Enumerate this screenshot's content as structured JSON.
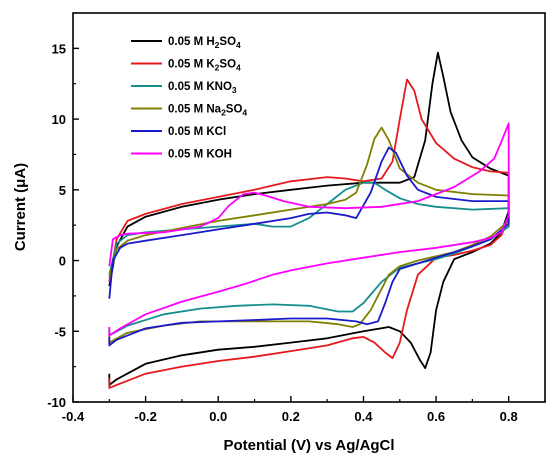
{
  "chart_data": {
    "type": "line",
    "title": "",
    "xlabel": "Potential (V) vs Ag/AgCl",
    "ylabel": "Current (μA)",
    "xlim": [
      -0.4,
      0.9
    ],
    "ylim": [
      -10,
      17.5
    ],
    "xticks": [
      -0.4,
      -0.2,
      0.0,
      0.2,
      0.4,
      0.6,
      0.8
    ],
    "xtick_labels": [
      "-0.4",
      "-0.2",
      "0.0",
      "0.2",
      "0.4",
      "0.6",
      "0.8"
    ],
    "yticks": [
      -10,
      -5,
      0,
      5,
      10,
      15
    ],
    "ytick_labels": [
      "-10",
      "-5",
      "0",
      "5",
      "10",
      "15"
    ],
    "legend_position": "top-left",
    "grid": false,
    "series": [
      {
        "name": "0.05 M H2SO4",
        "legend": {
          "prefix": "0.05 M H",
          "parts": [
            [
              "2",
              "sub"
            ],
            [
              "SO",
              "n"
            ],
            [
              "4",
              "sub"
            ]
          ]
        },
        "color": "#000000",
        "points": [
          [
            -0.3,
            -1.8
          ],
          [
            -0.28,
            1.0
          ],
          [
            -0.25,
            2.4
          ],
          [
            -0.2,
            3.1
          ],
          [
            -0.1,
            3.8
          ],
          [
            0.0,
            4.3
          ],
          [
            0.1,
            4.7
          ],
          [
            0.2,
            5.0
          ],
          [
            0.3,
            5.3
          ],
          [
            0.4,
            5.5
          ],
          [
            0.45,
            5.5
          ],
          [
            0.5,
            5.5
          ],
          [
            0.54,
            5.9
          ],
          [
            0.57,
            8.5
          ],
          [
            0.59,
            12.5
          ],
          [
            0.605,
            14.7
          ],
          [
            0.62,
            13.0
          ],
          [
            0.64,
            10.5
          ],
          [
            0.67,
            8.5
          ],
          [
            0.7,
            7.3
          ],
          [
            0.75,
            6.5
          ],
          [
            0.8,
            6.0
          ],
          [
            0.8,
            3.5
          ],
          [
            0.78,
            2.0
          ],
          [
            0.75,
            1.2
          ],
          [
            0.7,
            0.6
          ],
          [
            0.65,
            0.1
          ],
          [
            0.62,
            -1.5
          ],
          [
            0.6,
            -3.5
          ],
          [
            0.585,
            -6.5
          ],
          [
            0.57,
            -7.6
          ],
          [
            0.555,
            -7.0
          ],
          [
            0.53,
            -5.8
          ],
          [
            0.5,
            -5.0
          ],
          [
            0.47,
            -4.7
          ],
          [
            0.4,
            -5.0
          ],
          [
            0.3,
            -5.5
          ],
          [
            0.2,
            -5.8
          ],
          [
            0.1,
            -6.1
          ],
          [
            0.0,
            -6.3
          ],
          [
            -0.1,
            -6.7
          ],
          [
            -0.2,
            -7.3
          ],
          [
            -0.28,
            -8.4
          ],
          [
            -0.3,
            -8.8
          ],
          [
            -0.3,
            -8.0
          ]
        ]
      },
      {
        "name": "0.05 M K2SO4",
        "legend": {
          "prefix": "0.05 M K",
          "parts": [
            [
              "2",
              "sub"
            ],
            [
              "SO",
              "n"
            ],
            [
              "4",
              "sub"
            ]
          ]
        },
        "color": "#e41a1c",
        "points": [
          [
            -0.3,
            -1.5
          ],
          [
            -0.28,
            1.5
          ],
          [
            -0.25,
            2.8
          ],
          [
            -0.2,
            3.3
          ],
          [
            -0.1,
            4.0
          ],
          [
            0.0,
            4.5
          ],
          [
            0.1,
            5.0
          ],
          [
            0.2,
            5.6
          ],
          [
            0.3,
            5.9
          ],
          [
            0.35,
            5.8
          ],
          [
            0.4,
            5.6
          ],
          [
            0.45,
            5.8
          ],
          [
            0.48,
            7.0
          ],
          [
            0.5,
            10.0
          ],
          [
            0.52,
            12.8
          ],
          [
            0.54,
            12.0
          ],
          [
            0.56,
            10.0
          ],
          [
            0.6,
            8.3
          ],
          [
            0.65,
            7.2
          ],
          [
            0.7,
            6.6
          ],
          [
            0.75,
            6.3
          ],
          [
            0.8,
            6.2
          ],
          [
            0.8,
            3.0
          ],
          [
            0.78,
            1.8
          ],
          [
            0.75,
            1.1
          ],
          [
            0.7,
            0.7
          ],
          [
            0.65,
            0.4
          ],
          [
            0.6,
            0.2
          ],
          [
            0.55,
            -1.0
          ],
          [
            0.52,
            -3.5
          ],
          [
            0.5,
            -5.8
          ],
          [
            0.48,
            -6.9
          ],
          [
            0.46,
            -6.5
          ],
          [
            0.43,
            -5.8
          ],
          [
            0.4,
            -5.4
          ],
          [
            0.37,
            -5.5
          ],
          [
            0.3,
            -6.0
          ],
          [
            0.2,
            -6.4
          ],
          [
            0.1,
            -6.8
          ],
          [
            0.0,
            -7.1
          ],
          [
            -0.1,
            -7.5
          ],
          [
            -0.2,
            -8.0
          ],
          [
            -0.28,
            -8.8
          ],
          [
            -0.3,
            -9.0
          ],
          [
            -0.3,
            -8.3
          ]
        ]
      },
      {
        "name": "0.05 M KNO3",
        "legend": {
          "prefix": "0.05 M KNO",
          "parts": [
            [
              "3",
              "sub"
            ]
          ]
        },
        "color": "#168e8e",
        "points": [
          [
            -0.3,
            -1.0
          ],
          [
            -0.28,
            1.2
          ],
          [
            -0.25,
            1.8
          ],
          [
            -0.2,
            2.0
          ],
          [
            -0.1,
            2.2
          ],
          [
            0.0,
            2.4
          ],
          [
            0.1,
            2.6
          ],
          [
            0.15,
            2.4
          ],
          [
            0.2,
            2.4
          ],
          [
            0.25,
            3.0
          ],
          [
            0.3,
            4.0
          ],
          [
            0.35,
            5.0
          ],
          [
            0.4,
            5.5
          ],
          [
            0.43,
            5.5
          ],
          [
            0.46,
            5.0
          ],
          [
            0.5,
            4.4
          ],
          [
            0.55,
            4.0
          ],
          [
            0.6,
            3.8
          ],
          [
            0.7,
            3.6
          ],
          [
            0.8,
            3.7
          ],
          [
            0.8,
            2.4
          ],
          [
            0.75,
            1.5
          ],
          [
            0.7,
            1.0
          ],
          [
            0.65,
            0.5
          ],
          [
            0.6,
            0.1
          ],
          [
            0.55,
            -0.2
          ],
          [
            0.5,
            -0.5
          ],
          [
            0.45,
            -1.5
          ],
          [
            0.4,
            -3.0
          ],
          [
            0.37,
            -3.6
          ],
          [
            0.33,
            -3.6
          ],
          [
            0.25,
            -3.2
          ],
          [
            0.15,
            -3.1
          ],
          [
            0.05,
            -3.2
          ],
          [
            -0.05,
            -3.4
          ],
          [
            -0.15,
            -3.8
          ],
          [
            -0.25,
            -4.6
          ],
          [
            -0.3,
            -5.3
          ],
          [
            -0.3,
            -4.8
          ]
        ]
      },
      {
        "name": "0.05 M Na2SO4",
        "legend": {
          "prefix": "0.05 M Na",
          "parts": [
            [
              "2",
              "sub"
            ],
            [
              "SO",
              "n"
            ],
            [
              "4",
              "sub"
            ]
          ]
        },
        "color": "#808000",
        "points": [
          [
            -0.3,
            -1.2
          ],
          [
            -0.28,
            0.8
          ],
          [
            -0.25,
            1.4
          ],
          [
            -0.2,
            1.8
          ],
          [
            -0.1,
            2.3
          ],
          [
            0.0,
            2.8
          ],
          [
            0.1,
            3.2
          ],
          [
            0.2,
            3.6
          ],
          [
            0.3,
            4.0
          ],
          [
            0.35,
            4.3
          ],
          [
            0.38,
            4.8
          ],
          [
            0.41,
            6.8
          ],
          [
            0.43,
            8.6
          ],
          [
            0.45,
            9.4
          ],
          [
            0.47,
            8.5
          ],
          [
            0.5,
            6.5
          ],
          [
            0.55,
            5.5
          ],
          [
            0.6,
            5.0
          ],
          [
            0.7,
            4.7
          ],
          [
            0.8,
            4.6
          ],
          [
            0.8,
            2.8
          ],
          [
            0.75,
            1.7
          ],
          [
            0.7,
            1.1
          ],
          [
            0.65,
            0.6
          ],
          [
            0.6,
            0.3
          ],
          [
            0.55,
            0.0
          ],
          [
            0.5,
            -0.4
          ],
          [
            0.47,
            -1.0
          ],
          [
            0.45,
            -2.0
          ],
          [
            0.42,
            -3.5
          ],
          [
            0.39,
            -4.5
          ],
          [
            0.37,
            -4.7
          ],
          [
            0.33,
            -4.5
          ],
          [
            0.25,
            -4.3
          ],
          [
            0.15,
            -4.3
          ],
          [
            0.05,
            -4.3
          ],
          [
            -0.05,
            -4.3
          ],
          [
            -0.15,
            -4.6
          ],
          [
            -0.25,
            -5.1
          ],
          [
            -0.3,
            -5.8
          ],
          [
            -0.3,
            -5.1
          ]
        ]
      },
      {
        "name": "0.05 M KCl",
        "legend": {
          "prefix": "0.05 M KCl",
          "parts": []
        },
        "color": "#1a1acc",
        "points": [
          [
            -0.3,
            -2.7
          ],
          [
            -0.29,
            0.0
          ],
          [
            -0.27,
            0.9
          ],
          [
            -0.25,
            1.2
          ],
          [
            -0.2,
            1.4
          ],
          [
            -0.1,
            1.8
          ],
          [
            0.0,
            2.2
          ],
          [
            0.1,
            2.6
          ],
          [
            0.2,
            3.0
          ],
          [
            0.25,
            3.3
          ],
          [
            0.3,
            3.4
          ],
          [
            0.35,
            3.2
          ],
          [
            0.38,
            3.0
          ],
          [
            0.42,
            4.8
          ],
          [
            0.45,
            7.0
          ],
          [
            0.47,
            8.0
          ],
          [
            0.49,
            7.6
          ],
          [
            0.52,
            6.0
          ],
          [
            0.55,
            5.0
          ],
          [
            0.6,
            4.5
          ],
          [
            0.7,
            4.2
          ],
          [
            0.8,
            4.2
          ],
          [
            0.8,
            2.6
          ],
          [
            0.75,
            1.5
          ],
          [
            0.7,
            1.0
          ],
          [
            0.65,
            0.6
          ],
          [
            0.6,
            0.2
          ],
          [
            0.55,
            -0.2
          ],
          [
            0.5,
            -0.6
          ],
          [
            0.48,
            -1.5
          ],
          [
            0.46,
            -3.0
          ],
          [
            0.44,
            -4.3
          ],
          [
            0.41,
            -4.5
          ],
          [
            0.38,
            -4.3
          ],
          [
            0.3,
            -4.1
          ],
          [
            0.2,
            -4.1
          ],
          [
            0.1,
            -4.2
          ],
          [
            0.0,
            -4.3
          ],
          [
            -0.1,
            -4.4
          ],
          [
            -0.2,
            -4.8
          ],
          [
            -0.28,
            -5.6
          ],
          [
            -0.3,
            -6.0
          ],
          [
            -0.3,
            -5.4
          ]
        ]
      },
      {
        "name": "0.05 M KOH",
        "legend": {
          "prefix": "0.05 M KOH",
          "parts": []
        },
        "color": "#ff00ff",
        "points": [
          [
            -0.3,
            -0.4
          ],
          [
            -0.29,
            1.5
          ],
          [
            -0.27,
            1.8
          ],
          [
            -0.25,
            1.9
          ],
          [
            -0.15,
            2.0
          ],
          [
            -0.05,
            2.4
          ],
          [
            0.0,
            3.0
          ],
          [
            0.03,
            3.9
          ],
          [
            0.07,
            4.7
          ],
          [
            0.1,
            4.8
          ],
          [
            0.13,
            4.6
          ],
          [
            0.18,
            4.2
          ],
          [
            0.25,
            3.8
          ],
          [
            0.35,
            3.7
          ],
          [
            0.45,
            3.8
          ],
          [
            0.55,
            4.2
          ],
          [
            0.65,
            5.2
          ],
          [
            0.72,
            6.3
          ],
          [
            0.76,
            7.2
          ],
          [
            0.78,
            8.4
          ],
          [
            0.8,
            9.7
          ],
          [
            0.8,
            3.2
          ],
          [
            0.78,
            2.0
          ],
          [
            0.75,
            1.6
          ],
          [
            0.7,
            1.3
          ],
          [
            0.6,
            0.9
          ],
          [
            0.5,
            0.6
          ],
          [
            0.4,
            0.2
          ],
          [
            0.3,
            -0.2
          ],
          [
            0.2,
            -0.7
          ],
          [
            0.15,
            -1.0
          ],
          [
            0.08,
            -1.6
          ],
          [
            0.0,
            -2.2
          ],
          [
            -0.1,
            -2.9
          ],
          [
            -0.2,
            -3.8
          ],
          [
            -0.27,
            -4.8
          ],
          [
            -0.3,
            -5.3
          ],
          [
            -0.3,
            -4.7
          ]
        ]
      }
    ]
  }
}
